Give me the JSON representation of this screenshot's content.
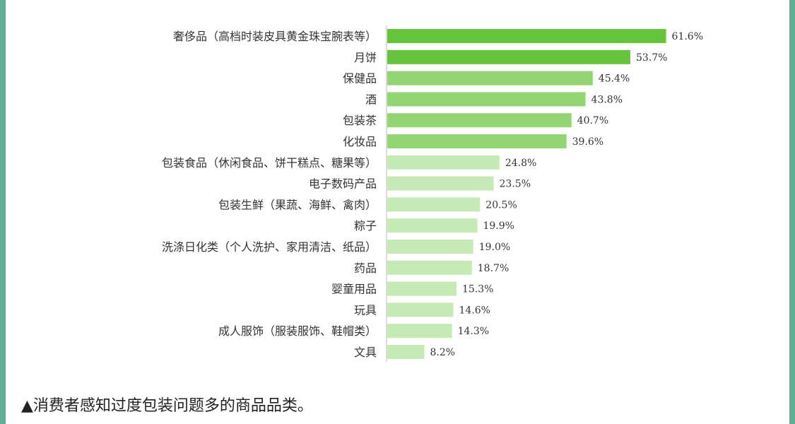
{
  "chart_data": {
    "type": "bar",
    "orientation": "horizontal",
    "categories": [
      "奢侈品（高档时装皮具黄金珠宝腕表等）",
      "月饼",
      "保健品",
      "酒",
      "包装茶",
      "化妆品",
      "包装食品（休闲食品、饼干糕点、糖果等）",
      "电子数码产品",
      "包装生鲜（果蔬、海鲜、禽肉）",
      "粽子",
      "洗涤日化类（个人洗护、家用清洁、纸品）",
      "药品",
      "婴童用品",
      "玩具",
      "成人服饰（服装服饰、鞋帽类）",
      "文具"
    ],
    "values": [
      61.6,
      53.7,
      45.4,
      43.8,
      40.7,
      39.6,
      24.8,
      23.5,
      20.5,
      19.9,
      19.0,
      18.7,
      15.3,
      14.6,
      14.3,
      8.2
    ],
    "value_labels": [
      "61.6%",
      "53.7%",
      "45.4%",
      "43.8%",
      "40.7%",
      "39.6%",
      "24.8%",
      "23.5%",
      "20.5%",
      "19.9%",
      "19.0%",
      "18.7%",
      "15.3%",
      "14.6%",
      "14.3%",
      "8.2%"
    ],
    "bar_colors": [
      "#66c43c",
      "#66c43c",
      "#92d572",
      "#92d572",
      "#92d572",
      "#92d572",
      "#c6eab5",
      "#c6eab5",
      "#c6eab5",
      "#c6eab5",
      "#c6eab5",
      "#c6eab5",
      "#c6eab5",
      "#c6eab5",
      "#c6eab5",
      "#c6eab5"
    ],
    "xlim": [
      0,
      70
    ],
    "title": "",
    "xlabel": "",
    "ylabel": "",
    "grid": false,
    "legend": "none"
  },
  "caption": "▲消费者感知过度包装问题多的商品品类。",
  "colors": {
    "frame": "#5fae93",
    "axis": "#bbbbbb",
    "text": "#333333"
  }
}
